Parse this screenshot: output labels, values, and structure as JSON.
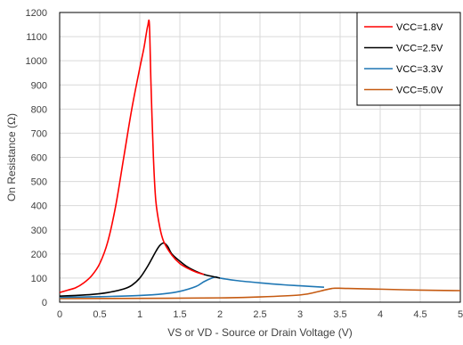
{
  "chart_data": {
    "type": "line",
    "title": "",
    "xlabel": "VS or VD - Source or Drain Voltage (V)",
    "ylabel": "On Resistance (Ω)",
    "xlim": [
      0,
      5
    ],
    "ylim": [
      0,
      1200
    ],
    "xticks": [
      0,
      0.5,
      1,
      1.5,
      2,
      2.5,
      3,
      3.5,
      4,
      4.5,
      5
    ],
    "xtick_labels": [
      "0",
      "0.5",
      "1",
      "1.5",
      "2",
      "2.5",
      "3",
      "3.5",
      "4",
      "4.5",
      "5"
    ],
    "yticks": [
      0,
      100,
      200,
      300,
      400,
      500,
      600,
      700,
      800,
      900,
      1000,
      1100,
      1200
    ],
    "ytick_labels": [
      "0",
      "100",
      "200",
      "300",
      "400",
      "500",
      "600",
      "700",
      "800",
      "900",
      "1000",
      "1100",
      "1200"
    ],
    "grid": true,
    "legend_position": "top-right",
    "series": [
      {
        "name": "VCC=1.8V",
        "color": "#ff0000",
        "x": [
          0,
          0.1,
          0.2,
          0.3,
          0.4,
          0.5,
          0.6,
          0.7,
          0.8,
          0.9,
          1.0,
          1.05,
          1.08,
          1.1,
          1.12,
          1.14,
          1.17,
          1.2,
          1.25,
          1.3,
          1.4,
          1.5,
          1.6,
          1.7,
          1.8
        ],
        "y": [
          40,
          50,
          60,
          80,
          110,
          160,
          250,
          400,
          600,
          800,
          970,
          1050,
          1110,
          1145,
          1150,
          900,
          600,
          420,
          310,
          250,
          195,
          160,
          140,
          125,
          115
        ]
      },
      {
        "name": "VCC=2.5V",
        "color": "#000000",
        "x": [
          0,
          0.2,
          0.4,
          0.6,
          0.8,
          0.9,
          1.0,
          1.1,
          1.2,
          1.25,
          1.3,
          1.35,
          1.4,
          1.5,
          1.6,
          1.7,
          1.8,
          1.9,
          2.0
        ],
        "y": [
          25,
          28,
          32,
          40,
          55,
          70,
          100,
          150,
          210,
          235,
          245,
          230,
          200,
          170,
          145,
          128,
          115,
          107,
          100
        ]
      },
      {
        "name": "VCC=3.3V",
        "color": "#1f77b4",
        "x": [
          0,
          0.5,
          1.0,
          1.3,
          1.5,
          1.7,
          1.8,
          1.9,
          1.95,
          2.0,
          2.2,
          2.5,
          2.8,
          3.0,
          3.3
        ],
        "y": [
          20,
          23,
          28,
          35,
          45,
          65,
          85,
          100,
          105,
          100,
          90,
          80,
          72,
          68,
          62
        ]
      },
      {
        "name": "VCC=5.0V",
        "color": "#c55a11",
        "x": [
          0,
          1.0,
          2.0,
          2.5,
          3.0,
          3.2,
          3.3,
          3.4,
          3.45,
          3.6,
          4.0,
          4.5,
          5.0
        ],
        "y": [
          15,
          16,
          18,
          22,
          30,
          42,
          50,
          57,
          58,
          57,
          54,
          50,
          48
        ]
      }
    ]
  }
}
